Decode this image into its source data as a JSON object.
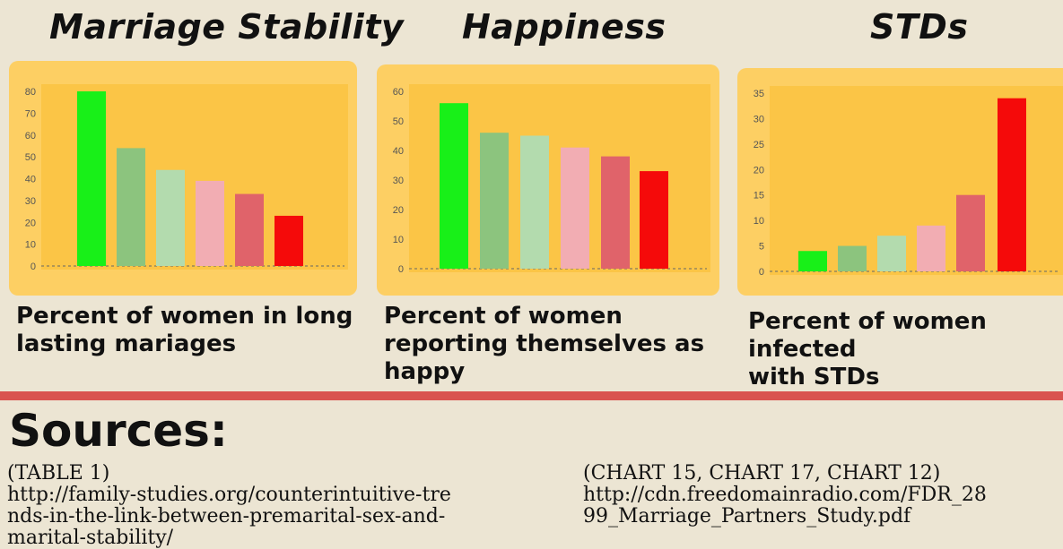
{
  "chart_data": [
    {
      "type": "bar",
      "title": "Marriage Stability",
      "caption": [
        "Percent of women in long",
        "lasting mariages"
      ],
      "ylim": [
        0,
        80
      ],
      "yticks": [
        0,
        10,
        20,
        30,
        40,
        50,
        60,
        70,
        80
      ],
      "values": [
        80,
        54,
        44,
        39,
        33,
        23
      ]
    },
    {
      "type": "bar",
      "title": "Happiness",
      "caption": [
        "Percent of women",
        "reporting themselves as",
        "happy"
      ],
      "ylim": [
        0,
        60
      ],
      "yticks": [
        0,
        10,
        20,
        30,
        40,
        50,
        60
      ],
      "values": [
        56,
        46,
        45,
        41,
        38,
        33
      ]
    },
    {
      "type": "bar",
      "title": "STDs",
      "caption": [
        "Percent of women infected",
        "with STDs"
      ],
      "ylim": [
        0,
        35
      ],
      "yticks": [
        0,
        5,
        10,
        15,
        20,
        25,
        30,
        35
      ],
      "values": [
        4,
        5,
        7,
        9,
        15,
        34
      ]
    }
  ],
  "bar_colors": [
    "#18f018",
    "#8cc47e",
    "#b3dbae",
    "#f2adb3",
    "#e0636a",
    "#f50a0a"
  ],
  "colors": {
    "panel": "#fdcf63",
    "plot_bg": "#fbc546",
    "divider": "#d9534f",
    "background": "#ece5d3"
  },
  "sources": {
    "title": "Sources:",
    "left": [
      "(TABLE 1)",
      "http://family-studies.org/counterintuitive-tre",
      "nds-in-the-link-between-premarital-sex-and-",
      "marital-stability/"
    ],
    "right": [
      "(CHART 15, CHART 17, CHART 12)",
      "http://cdn.freedomainradio.com/FDR_28",
      "99_Marriage_Partners_Study.pdf"
    ]
  }
}
